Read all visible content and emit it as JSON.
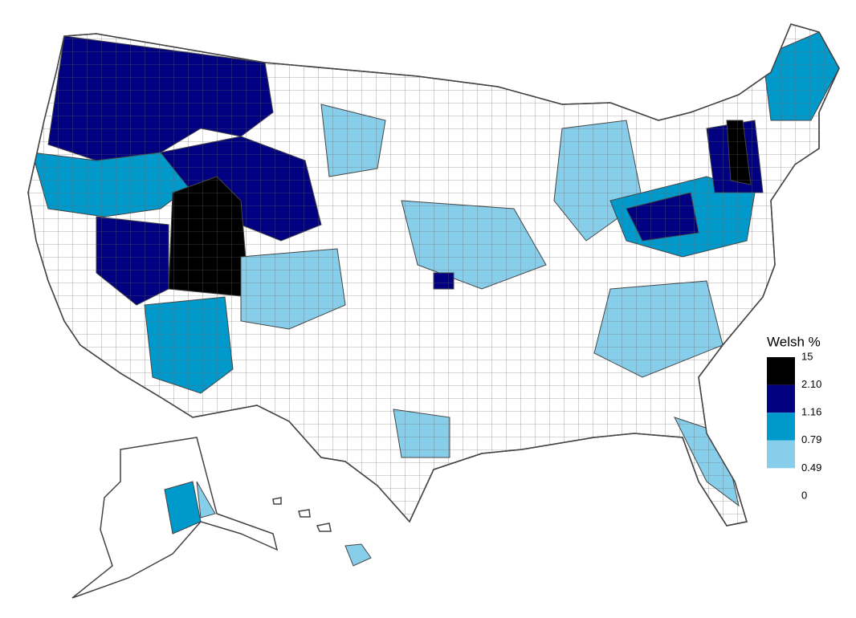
{
  "legend": {
    "title": "Welsh %",
    "breaks": [
      15,
      {
        "value": 2.1,
        "label": "2.10"
      },
      1.16,
      0.79,
      0.49,
      0
    ],
    "colors": [
      "#000000",
      "#000080",
      "#0099cc",
      "#87ceeb",
      "#ffffff"
    ]
  }
}
